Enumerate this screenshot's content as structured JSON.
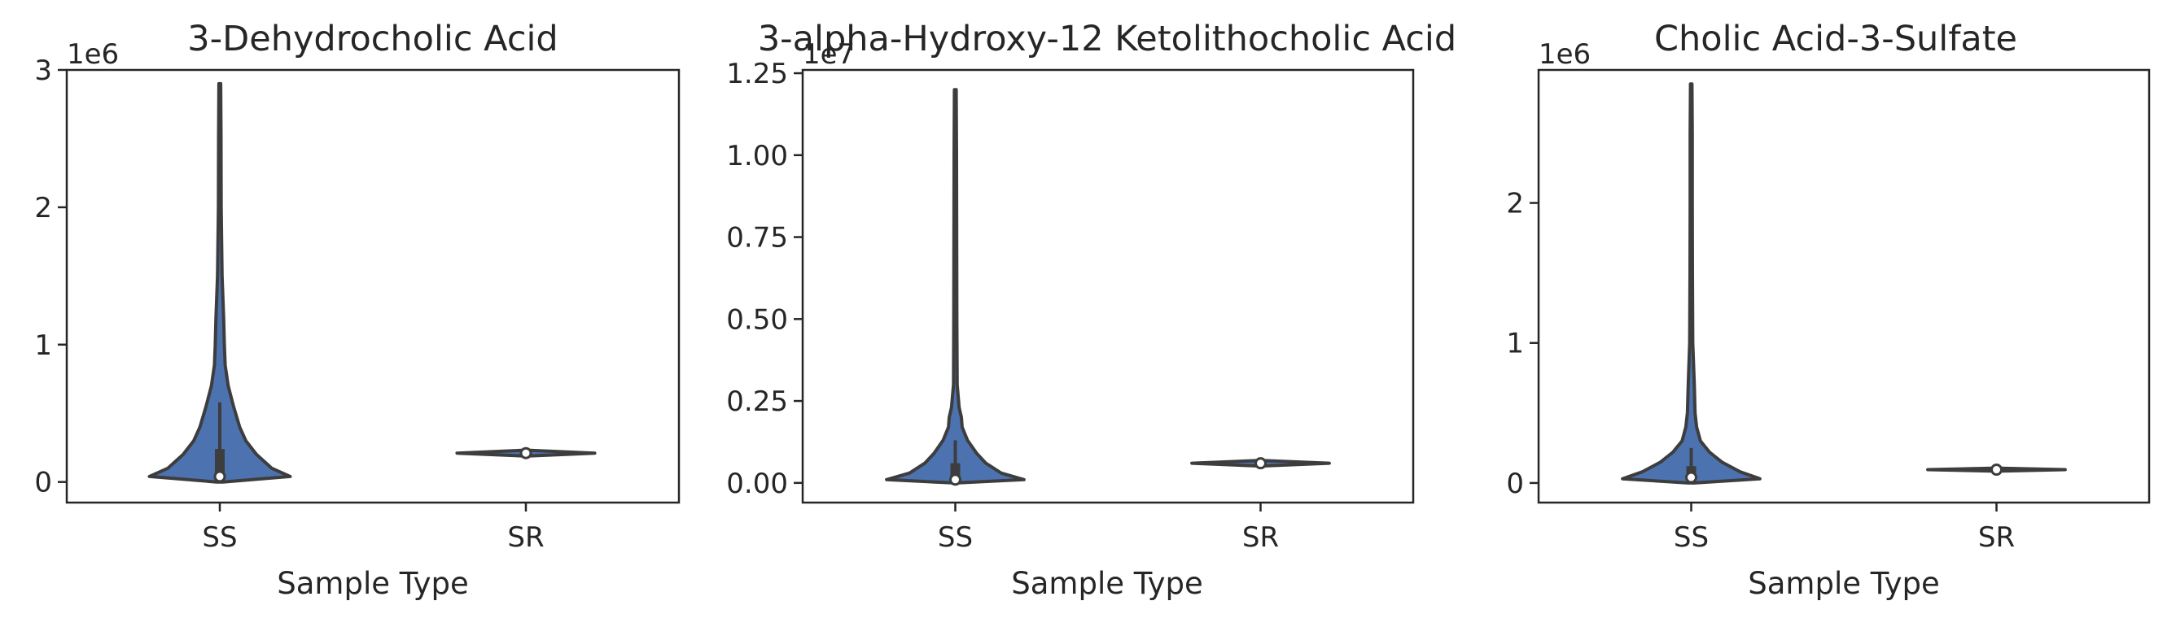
{
  "chart_data": [
    {
      "type": "violin",
      "title": "3-Dehydrocholic Acid",
      "xlabel": "Sample Type",
      "ylabel": "",
      "offset_text": "1e6",
      "categories": [
        "SS",
        "SR"
      ],
      "ylim": [
        -0.15,
        3.0
      ],
      "yticks": [
        0,
        1,
        2,
        3
      ],
      "ytick_labels": [
        "0",
        "1",
        "2",
        "3"
      ],
      "violins": [
        {
          "category": "SS",
          "color": "#4c72b0",
          "profile": [
            [
              0,
              0.02
            ],
            [
              0.04,
              0.46
            ],
            [
              0.1,
              0.34
            ],
            [
              0.2,
              0.24
            ],
            [
              0.3,
              0.17
            ],
            [
              0.4,
              0.13
            ],
            [
              0.55,
              0.09
            ],
            [
              0.7,
              0.055
            ],
            [
              0.85,
              0.035
            ],
            [
              1.0,
              0.03
            ],
            [
              1.2,
              0.025
            ],
            [
              1.5,
              0.015
            ],
            [
              2.0,
              0.009
            ],
            [
              2.5,
              0.008
            ],
            [
              2.9,
              0.006
            ]
          ],
          "median": 0.04,
          "q1": 0.0,
          "q3": 0.24,
          "whisker_low": 0.0,
          "whisker_high": 0.58
        },
        {
          "category": "SR",
          "color": "#4c72b0",
          "profile": [
            [
              0.19,
              0.03
            ],
            [
              0.21,
              0.45
            ],
            [
              0.23,
              0.03
            ]
          ],
          "median": 0.21,
          "q1": 0.205,
          "q3": 0.215,
          "whisker_low": 0.2,
          "whisker_high": 0.22
        }
      ]
    },
    {
      "type": "violin",
      "title": "3-alpha-Hydroxy-12 Ketolithocholic Acid",
      "xlabel": "Sample Type",
      "ylabel": "",
      "offset_text": "1e7",
      "categories": [
        "SS",
        "SR"
      ],
      "ylim": [
        -0.06,
        1.26
      ],
      "yticks": [
        0.0,
        0.25,
        0.5,
        0.75,
        1.0,
        1.25
      ],
      "ytick_labels": [
        "0.00",
        "0.25",
        "0.50",
        "0.75",
        "1.00",
        "1.25"
      ],
      "violins": [
        {
          "category": "SS",
          "color": "#4c72b0",
          "profile": [
            [
              0,
              0.02
            ],
            [
              0.01,
              0.45
            ],
            [
              0.03,
              0.3
            ],
            [
              0.06,
              0.2
            ],
            [
              0.09,
              0.14
            ],
            [
              0.13,
              0.08
            ],
            [
              0.17,
              0.045
            ],
            [
              0.2,
              0.04
            ],
            [
              0.23,
              0.025
            ],
            [
              0.3,
              0.012
            ],
            [
              0.5,
              0.01
            ],
            [
              0.75,
              0.009
            ],
            [
              1.0,
              0.008
            ],
            [
              1.2,
              0.006
            ]
          ],
          "median": 0.01,
          "q1": 0.0,
          "q3": 0.06,
          "whisker_low": 0.0,
          "whisker_high": 0.13
        },
        {
          "category": "SR",
          "color": "#4c72b0",
          "profile": [
            [
              0.052,
              0.03
            ],
            [
              0.06,
              0.45
            ],
            [
              0.068,
              0.03
            ]
          ],
          "median": 0.06,
          "q1": 0.058,
          "q3": 0.062,
          "whisker_low": 0.056,
          "whisker_high": 0.064
        }
      ]
    },
    {
      "type": "violin",
      "title": "Cholic Acid-3-Sulfate",
      "xlabel": "Sample Type",
      "ylabel": "",
      "offset_text": "1e6",
      "categories": [
        "SS",
        "SR"
      ],
      "ylim": [
        -0.14,
        2.95
      ],
      "yticks": [
        0,
        1,
        2
      ],
      "ytick_labels": [
        "0",
        "1",
        "2"
      ],
      "violins": [
        {
          "category": "SS",
          "color": "#4c72b0",
          "profile": [
            [
              0,
              0.02
            ],
            [
              0.03,
              0.45
            ],
            [
              0.08,
              0.32
            ],
            [
              0.15,
              0.2
            ],
            [
              0.22,
              0.12
            ],
            [
              0.3,
              0.06
            ],
            [
              0.4,
              0.035
            ],
            [
              0.5,
              0.025
            ],
            [
              0.7,
              0.02
            ],
            [
              1.0,
              0.01
            ],
            [
              1.5,
              0.008
            ],
            [
              2.0,
              0.007
            ],
            [
              2.5,
              0.007
            ],
            [
              2.85,
              0.005
            ]
          ],
          "median": 0.04,
          "q1": 0.0,
          "q3": 0.12,
          "whisker_low": 0.0,
          "whisker_high": 0.25
        },
        {
          "category": "SR",
          "color": "#4c72b0",
          "profile": [
            [
              0.085,
              0.03
            ],
            [
              0.095,
              0.45
            ],
            [
              0.105,
              0.03
            ]
          ],
          "median": 0.095,
          "q1": 0.092,
          "q3": 0.098,
          "whisker_low": 0.09,
          "whisker_high": 0.1
        }
      ]
    }
  ]
}
